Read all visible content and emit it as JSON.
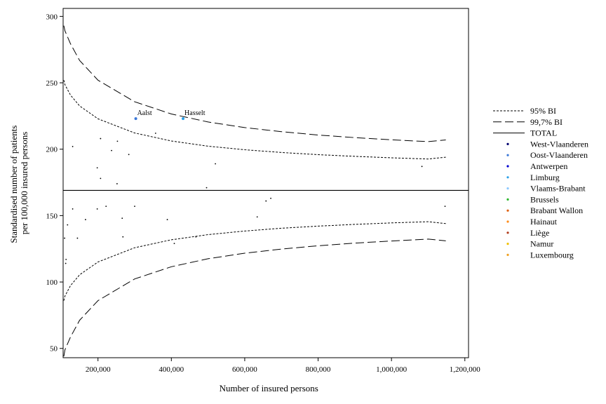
{
  "chart_data": {
    "type": "scatter",
    "xlabel": "Number of insured persons",
    "ylabel_lines": [
      "Standardised number of patients",
      "per 100,000 insured persons"
    ],
    "xlim": [
      105000,
      1210000
    ],
    "ylim": [
      43,
      306
    ],
    "x_ticks": [
      200000,
      400000,
      600000,
      800000,
      1000000,
      1200000
    ],
    "x_tick_labels": [
      "200,000",
      "400,000",
      "600,000",
      "800,000",
      "1,000,000",
      "1,200,000"
    ],
    "y_ticks": [
      50,
      100,
      150,
      200,
      250,
      300
    ],
    "y_tick_labels": [
      "50",
      "100",
      "150",
      "200",
      "250",
      "300"
    ],
    "grid": false,
    "legend_position": "right",
    "total": 169,
    "limits": {
      "x_range": [
        107000,
        1148000
      ],
      "ci95": {
        "x": [
          107000,
          110000,
          125000,
          150000,
          200000,
          300000,
          400000,
          500000,
          600000,
          700000,
          800000,
          900000,
          1000000,
          1100000,
          1148000
        ],
        "upper": [
          252.0,
          248.6,
          240.7,
          232.6,
          222.9,
          212.2,
          206.2,
          202.3,
          199.6,
          197.5,
          195.9,
          194.6,
          193.5,
          192.6,
          194.0
        ],
        "lower": [
          86.0,
          89.4,
          97.3,
          105.4,
          115.1,
          125.8,
          131.8,
          135.7,
          138.4,
          140.5,
          142.1,
          143.4,
          144.5,
          145.4,
          144.0
        ]
      },
      "ci997": {
        "x": [
          107000,
          110000,
          125000,
          150000,
          200000,
          300000,
          400000,
          500000,
          600000,
          700000,
          800000,
          900000,
          1000000,
          1100000,
          1148000
        ],
        "upper": [
          293.0,
          289.1,
          279.4,
          266.8,
          252.0,
          235.7,
          226.5,
          220.5,
          216.3,
          213.2,
          210.7,
          208.7,
          207.1,
          205.7,
          207.0
        ],
        "lower": [
          44.0,
          48.9,
          58.6,
          71.2,
          86.0,
          102.3,
          111.5,
          117.5,
          121.7,
          124.8,
          127.3,
          129.3,
          130.9,
          132.3,
          131.0
        ]
      }
    },
    "series": [
      {
        "name": "West-Vlaanderen",
        "color": "#00006e",
        "points": []
      },
      {
        "name": "Oost-Vlaanderen",
        "color": "#3c78d8",
        "points": [
          {
            "x": 303000,
            "y": 223,
            "label": "Aalst"
          }
        ]
      },
      {
        "name": "Antwerpen",
        "color": "#0000d0",
        "points": []
      },
      {
        "name": "Limburg",
        "color": "#2aa0e8",
        "points": [
          {
            "x": 432000,
            "y": 223,
            "label": "Hasselt"
          }
        ]
      },
      {
        "name": "Vlaams-Brabant",
        "color": "#8cc8ff",
        "points": []
      },
      {
        "name": "Brussels",
        "color": "#2db82d",
        "points": []
      },
      {
        "name": "Brabant Wallon",
        "color": "#e06010",
        "points": []
      },
      {
        "name": "Hainaut",
        "color": "#ff8c1a",
        "points": []
      },
      {
        "name": "Liège",
        "color": "#b03a1a",
        "points": []
      },
      {
        "name": "Namur",
        "color": "#f0c000",
        "points": []
      },
      {
        "name": "Luxembourg",
        "color": "#f0a020",
        "points": []
      },
      {
        "name": "",
        "color": "#000000",
        "points": [
          {
            "x": 131000,
            "y": 202
          },
          {
            "x": 207000,
            "y": 208
          },
          {
            "x": 253000,
            "y": 206
          },
          {
            "x": 237000,
            "y": 199
          },
          {
            "x": 284000,
            "y": 196
          },
          {
            "x": 198000,
            "y": 186
          },
          {
            "x": 207000,
            "y": 178
          },
          {
            "x": 252000,
            "y": 174
          },
          {
            "x": 357000,
            "y": 212
          },
          {
            "x": 520000,
            "y": 189
          },
          {
            "x": 496000,
            "y": 171
          },
          {
            "x": 1083000,
            "y": 187
          },
          {
            "x": 131000,
            "y": 155
          },
          {
            "x": 222000,
            "y": 157
          },
          {
            "x": 198000,
            "y": 155
          },
          {
            "x": 300000,
            "y": 157
          },
          {
            "x": 109000,
            "y": 133
          },
          {
            "x": 117000,
            "y": 143
          },
          {
            "x": 144000,
            "y": 133
          },
          {
            "x": 166000,
            "y": 147
          },
          {
            "x": 113000,
            "y": 117
          },
          {
            "x": 112000,
            "y": 114
          },
          {
            "x": 266000,
            "y": 148
          },
          {
            "x": 268000,
            "y": 134
          },
          {
            "x": 389000,
            "y": 147
          },
          {
            "x": 408000,
            "y": 129
          },
          {
            "x": 467000,
            "y": 134
          },
          {
            "x": 634000,
            "y": 149
          },
          {
            "x": 658000,
            "y": 161
          },
          {
            "x": 671000,
            "y": 163
          },
          {
            "x": 1146000,
            "y": 157
          }
        ]
      }
    ],
    "legend": {
      "lines": [
        {
          "label": "95% BI",
          "style": "dotted"
        },
        {
          "label": "99,7% BI",
          "style": "dashed"
        },
        {
          "label": "TOTAL",
          "style": "solid"
        }
      ]
    }
  }
}
